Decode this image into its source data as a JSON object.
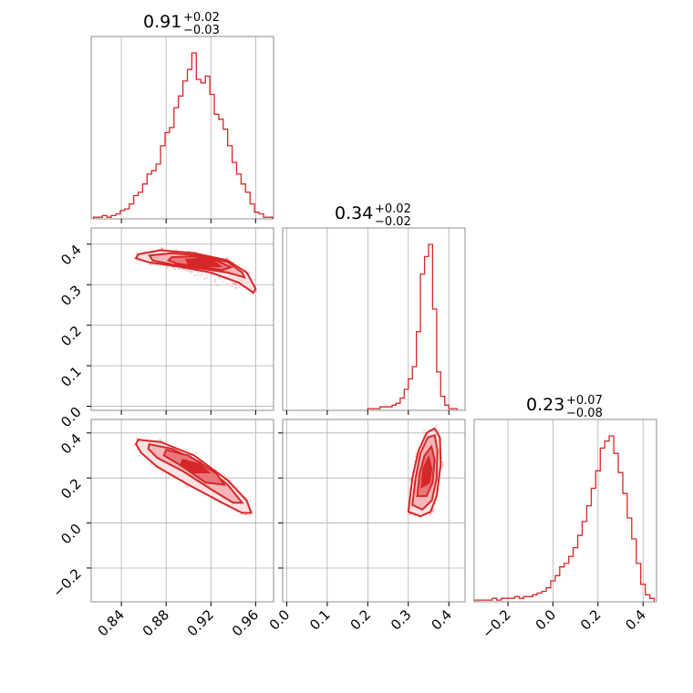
{
  "chart_data": {
    "type": "corner",
    "color": "#d62728",
    "grid": true,
    "parameters": [
      {
        "title": {
          "value": "0.91",
          "upper": "+0.02",
          "lower": "−0.03"
        },
        "median": 0.91,
        "err_plus": 0.02,
        "err_minus": 0.03,
        "ticks": [
          0.84,
          0.88,
          0.92,
          0.96
        ],
        "tick_labels": [
          "0.84",
          "0.88",
          "0.92",
          "0.96"
        ],
        "range": [
          0.813,
          0.976
        ],
        "hist": {
          "edges": [
            0.815,
            0.819,
            0.823,
            0.827,
            0.831,
            0.835,
            0.839,
            0.843,
            0.847,
            0.851,
            0.855,
            0.859,
            0.863,
            0.867,
            0.871,
            0.875,
            0.879,
            0.883,
            0.887,
            0.891,
            0.895,
            0.899,
            0.903,
            0.907,
            0.911,
            0.915,
            0.919,
            0.923,
            0.927,
            0.931,
            0.935,
            0.939,
            0.943,
            0.947,
            0.951,
            0.955,
            0.959,
            0.963,
            0.967,
            0.971,
            0.975
          ],
          "counts": [
            1,
            1,
            2,
            1,
            2,
            3,
            5,
            6,
            9,
            14,
            16,
            21,
            27,
            29,
            33,
            44,
            52,
            55,
            67,
            74,
            83,
            90,
            100,
            84,
            82,
            86,
            75,
            63,
            60,
            54,
            44,
            34,
            27,
            21,
            16,
            9,
            4,
            3,
            1,
            1
          ]
        }
      },
      {
        "title": {
          "value": "0.34",
          "upper": "+0.02",
          "lower": "−0.02"
        },
        "median": 0.34,
        "err_plus": 0.02,
        "err_minus": 0.02,
        "ticks": [
          0.0,
          0.1,
          0.2,
          0.3,
          0.4
        ],
        "tick_labels": [
          "0.0",
          "0.1",
          "0.2",
          "0.3",
          "0.4"
        ],
        "range": [
          -0.01,
          0.44
        ],
        "hist": {
          "edges": [
            0.2,
            0.21,
            0.22,
            0.23,
            0.24,
            0.25,
            0.26,
            0.27,
            0.28,
            0.29,
            0.3,
            0.31,
            0.32,
            0.33,
            0.34,
            0.35,
            0.36,
            0.37,
            0.38,
            0.39,
            0.4,
            0.41,
            0.42
          ],
          "counts": [
            1,
            1,
            1,
            2,
            2,
            2,
            3,
            4,
            7,
            12,
            18,
            25,
            45,
            78,
            88,
            95,
            58,
            22,
            8,
            3,
            1,
            1
          ]
        }
      },
      {
        "title": {
          "value": "0.23",
          "upper": "+0.07",
          "lower": "−0.08"
        },
        "median": 0.23,
        "err_plus": 0.07,
        "err_minus": 0.08,
        "ticks": [
          -0.2,
          0.0,
          0.2,
          0.4
        ],
        "tick_labels": [
          "−0.2",
          "0.0",
          "0.2",
          "0.4"
        ],
        "range": [
          -0.35,
          0.46
        ],
        "hist": {
          "edges": [
            -0.35,
            -0.33,
            -0.31,
            -0.29,
            -0.27,
            -0.25,
            -0.23,
            -0.21,
            -0.19,
            -0.17,
            -0.15,
            -0.13,
            -0.11,
            -0.09,
            -0.07,
            -0.05,
            -0.03,
            -0.01,
            0.01,
            0.03,
            0.05,
            0.07,
            0.09,
            0.11,
            0.13,
            0.15,
            0.17,
            0.19,
            0.21,
            0.23,
            0.25,
            0.27,
            0.29,
            0.31,
            0.33,
            0.35,
            0.37,
            0.39,
            0.41,
            0.43,
            0.45
          ],
          "counts": [
            1,
            1,
            1,
            1,
            2,
            1,
            2,
            2,
            2,
            3,
            2,
            3,
            3,
            4,
            5,
            6,
            8,
            12,
            15,
            20,
            22,
            26,
            31,
            38,
            46,
            55,
            65,
            75,
            88,
            92,
            95,
            85,
            74,
            62,
            48,
            36,
            22,
            10,
            4,
            2
          ]
        }
      }
    ],
    "pairs": [
      {
        "x": 0,
        "y": 1,
        "contours": [
          [
            [
              0.855,
              0.375
            ],
            [
              0.875,
              0.385
            ],
            [
              0.905,
              0.378
            ],
            [
              0.935,
              0.36
            ],
            [
              0.952,
              0.33
            ],
            [
              0.96,
              0.29
            ],
            [
              0.958,
              0.28
            ],
            [
              0.945,
              0.305
            ],
            [
              0.92,
              0.33
            ],
            [
              0.89,
              0.345
            ],
            [
              0.865,
              0.355
            ],
            [
              0.853,
              0.365
            ]
          ],
          [
            [
              0.865,
              0.372
            ],
            [
              0.885,
              0.378
            ],
            [
              0.91,
              0.372
            ],
            [
              0.935,
              0.356
            ],
            [
              0.948,
              0.33
            ],
            [
              0.95,
              0.318
            ],
            [
              0.935,
              0.33
            ],
            [
              0.91,
              0.34
            ],
            [
              0.885,
              0.35
            ],
            [
              0.868,
              0.36
            ]
          ],
          [
            [
              0.885,
              0.368
            ],
            [
              0.905,
              0.37
            ],
            [
              0.925,
              0.36
            ],
            [
              0.938,
              0.343
            ],
            [
              0.93,
              0.336
            ],
            [
              0.91,
              0.344
            ],
            [
              0.89,
              0.352
            ],
            [
              0.882,
              0.36
            ]
          ],
          [
            [
              0.898,
              0.362
            ],
            [
              0.912,
              0.364
            ],
            [
              0.924,
              0.355
            ],
            [
              0.928,
              0.346
            ],
            [
              0.915,
              0.345
            ],
            [
              0.9,
              0.352
            ]
          ]
        ]
      },
      {
        "x": 0,
        "y": 2,
        "contours": [
          [
            [
              0.855,
              0.37
            ],
            [
              0.875,
              0.36
            ],
            [
              0.905,
              0.3
            ],
            [
              0.935,
              0.19
            ],
            [
              0.952,
              0.1
            ],
            [
              0.956,
              0.045
            ],
            [
              0.948,
              0.045
            ],
            [
              0.93,
              0.09
            ],
            [
              0.9,
              0.17
            ],
            [
              0.872,
              0.25
            ],
            [
              0.858,
              0.31
            ],
            [
              0.853,
              0.35
            ]
          ],
          [
            [
              0.865,
              0.35
            ],
            [
              0.885,
              0.33
            ],
            [
              0.91,
              0.27
            ],
            [
              0.935,
              0.17
            ],
            [
              0.948,
              0.09
            ],
            [
              0.94,
              0.09
            ],
            [
              0.92,
              0.15
            ],
            [
              0.895,
              0.23
            ],
            [
              0.872,
              0.29
            ],
            [
              0.864,
              0.33
            ]
          ],
          [
            [
              0.88,
              0.325
            ],
            [
              0.9,
              0.3
            ],
            [
              0.925,
              0.22
            ],
            [
              0.932,
              0.17
            ],
            [
              0.915,
              0.18
            ],
            [
              0.895,
              0.25
            ],
            [
              0.878,
              0.3
            ]
          ],
          [
            [
              0.895,
              0.28
            ],
            [
              0.91,
              0.26
            ],
            [
              0.918,
              0.225
            ],
            [
              0.905,
              0.225
            ],
            [
              0.893,
              0.26
            ]
          ]
        ]
      },
      {
        "x": 1,
        "y": 2,
        "contours": [
          [
            [
              0.3,
              0.05
            ],
            [
              0.31,
              0.2
            ],
            [
              0.325,
              0.32
            ],
            [
              0.345,
              0.4
            ],
            [
              0.365,
              0.42
            ],
            [
              0.378,
              0.38
            ],
            [
              0.38,
              0.26
            ],
            [
              0.37,
              0.12
            ],
            [
              0.355,
              0.05
            ],
            [
              0.33,
              0.03
            ]
          ],
          [
            [
              0.31,
              0.08
            ],
            [
              0.318,
              0.2
            ],
            [
              0.33,
              0.31
            ],
            [
              0.348,
              0.38
            ],
            [
              0.365,
              0.39
            ],
            [
              0.372,
              0.32
            ],
            [
              0.37,
              0.2
            ],
            [
              0.358,
              0.1
            ],
            [
              0.335,
              0.06
            ]
          ],
          [
            [
              0.322,
              0.12
            ],
            [
              0.328,
              0.22
            ],
            [
              0.34,
              0.3
            ],
            [
              0.357,
              0.34
            ],
            [
              0.365,
              0.28
            ],
            [
              0.36,
              0.18
            ],
            [
              0.345,
              0.12
            ]
          ],
          [
            [
              0.333,
              0.16
            ],
            [
              0.337,
              0.24
            ],
            [
              0.35,
              0.29
            ],
            [
              0.357,
              0.24
            ],
            [
              0.352,
              0.18
            ]
          ]
        ]
      }
    ]
  }
}
